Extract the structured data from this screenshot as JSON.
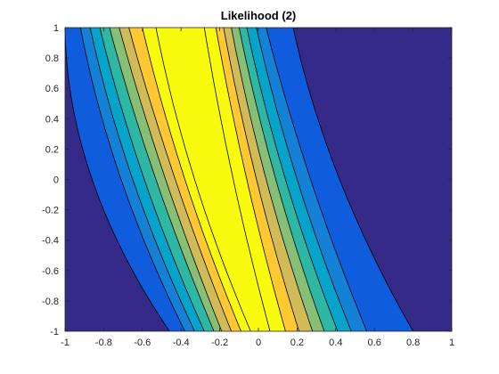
{
  "chart_data": {
    "type": "contourf",
    "title": "Likelihood (2)",
    "xlabel": "",
    "ylabel": "",
    "xlim": [
      -1,
      1
    ],
    "ylim": [
      -1,
      1
    ],
    "x_ticks": [
      -1,
      -0.8,
      -0.6,
      -0.4,
      -0.2,
      0,
      0.2,
      0.4,
      0.6,
      0.8,
      1
    ],
    "y_ticks": [
      -1,
      -0.8,
      -0.6,
      -0.4,
      -0.2,
      0,
      0.2,
      0.4,
      0.6,
      0.8,
      1
    ],
    "x_tick_labels": [
      "-1",
      "-0.8",
      "-0.6",
      "-0.4",
      "-0.2",
      "0",
      "0.2",
      "0.4",
      "0.6",
      "0.8",
      "1"
    ],
    "y_tick_labels": [
      "-1",
      "-0.8",
      "-0.6",
      "-0.4",
      "-0.2",
      "0",
      "0.2",
      "0.4",
      "0.6",
      "0.8",
      "1"
    ],
    "grid": false,
    "levels": 8,
    "colormap": [
      "#352a87",
      "#0f5cdd",
      "#1481d6",
      "#06a4ca",
      "#2eb7a4",
      "#87bf77",
      "#d1bb59",
      "#fec832",
      "#f9fb0e"
    ],
    "contour_line_color": "#000000",
    "ridge": {
      "description_free": true,
      "left_boundary_at_y": [
        {
          "y": 1.0,
          "left_edges": [
            -1.0,
            -0.92,
            -0.87,
            -0.82,
            -0.77,
            -0.72,
            -0.67,
            -0.6,
            -0.53
          ],
          "right_edges": [
            -0.28,
            -0.22,
            -0.18,
            -0.14,
            -0.1,
            -0.06,
            -0.01,
            0.04,
            0.18
          ]
        },
        {
          "y": 0.0,
          "left_edges": [
            -0.86,
            -0.71,
            -0.65,
            -0.59,
            -0.53,
            -0.48,
            -0.43,
            -0.38,
            -0.33
          ],
          "right_edges": [
            -0.13,
            -0.06,
            -0.01,
            0.04,
            0.09,
            0.14,
            0.2,
            0.27,
            0.42
          ]
        },
        {
          "y": -1.0,
          "left_edges": [
            -0.46,
            -0.38,
            -0.33,
            -0.28,
            -0.23,
            -0.19,
            -0.14,
            -0.09,
            -0.04
          ],
          "right_edges": [
            0.06,
            0.14,
            0.21,
            0.28,
            0.34,
            0.41,
            0.48,
            0.56,
            0.8
          ]
        }
      ]
    }
  }
}
